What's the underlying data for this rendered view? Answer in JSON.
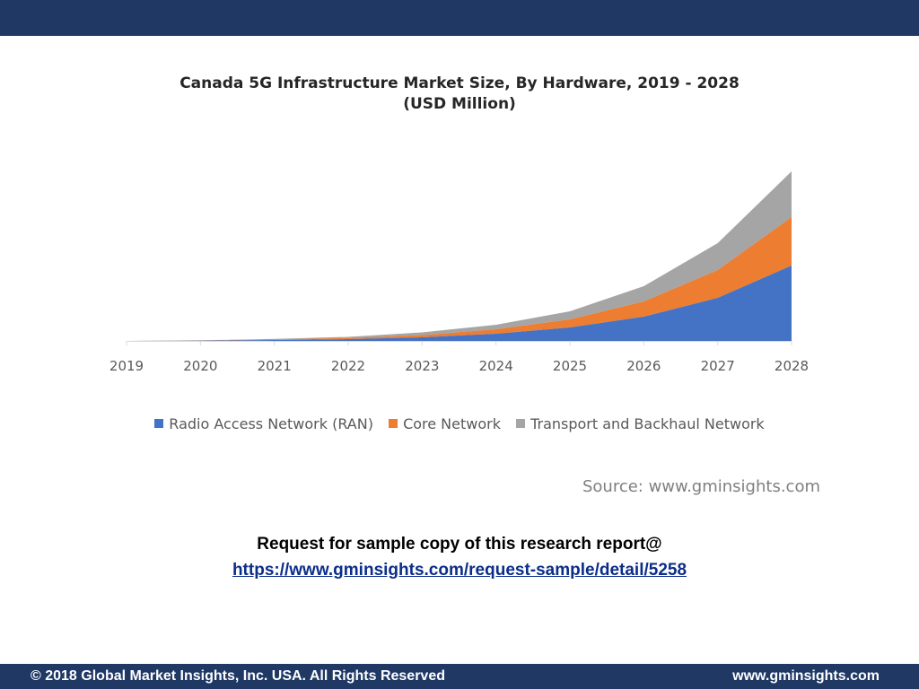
{
  "header": {
    "color": "#1f3864"
  },
  "chart_data": {
    "type": "area",
    "stacked": true,
    "title": "Canada 5G Infrastructure Market Size, By Hardware, 2019 - 2028",
    "subtitle": "(USD Million)",
    "x": [
      "2019",
      "2020",
      "2021",
      "2022",
      "2023",
      "2024",
      "2025",
      "2026",
      "2027",
      "2028"
    ],
    "ylim": [
      0,
      220
    ],
    "grid": false,
    "legend_position": "bottom",
    "series": [
      {
        "name": "Radio Access Network (RAN)",
        "color": "#4472c4",
        "values": [
          0,
          0.3,
          1,
          2,
          4,
          8,
          15,
          27,
          48,
          84
        ]
      },
      {
        "name": "Core Network",
        "color": "#ed7d31",
        "values": [
          0,
          0.2,
          0.6,
          1.2,
          2.5,
          5,
          9,
          17,
          31,
          54
        ]
      },
      {
        "name": "Transport and Backhaul Network",
        "color": "#a5a5a5",
        "values": [
          0,
          0.2,
          0.6,
          1.3,
          3,
          5,
          9,
          17,
          30,
          51
        ]
      }
    ]
  },
  "source": "Source: www.gminsights.com",
  "request": {
    "line": "Request for sample copy of this research report@",
    "link": "https://www.gminsights.com/request-sample/detail/5258"
  },
  "footer": {
    "copyright": "© 2018 Global Market Insights, Inc. USA. All Rights Reserved",
    "website": "www.gminsights.com"
  }
}
